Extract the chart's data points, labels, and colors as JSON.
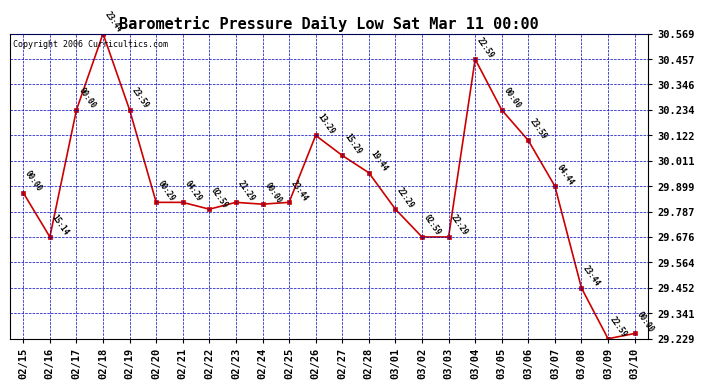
{
  "title": "Barometric Pressure Daily Low Sat Mar 11 00:00",
  "copyright": "Copyright 2006 Curricultics.com",
  "x_labels": [
    "02/15",
    "02/16",
    "02/17",
    "02/18",
    "02/19",
    "02/20",
    "02/21",
    "02/22",
    "02/23",
    "02/24",
    "02/25",
    "02/26",
    "02/27",
    "02/28",
    "03/01",
    "03/02",
    "03/03",
    "03/04",
    "03/05",
    "03/06",
    "03/07",
    "03/08",
    "03/09",
    "03/10"
  ],
  "y_values": [
    29.87,
    29.676,
    30.234,
    30.569,
    30.234,
    29.828,
    29.828,
    29.798,
    29.828,
    29.82,
    29.828,
    30.122,
    30.034,
    29.958,
    29.798,
    29.676,
    29.676,
    30.457,
    30.234,
    30.1,
    29.899,
    29.452,
    29.229,
    29.252
  ],
  "point_labels": [
    "00:00",
    "15:14",
    "00:00",
    "23:44",
    "23:59",
    "00:29",
    "04:29",
    "02:59",
    "21:29",
    "00:00",
    "23:44",
    "13:29",
    "15:29",
    "19:44",
    "22:29",
    "02:59",
    "22:29",
    "22:59",
    "00:00",
    "23:59",
    "04:44",
    "23:44",
    "22:59",
    "00:00"
  ],
  "y_ticks": [
    29.229,
    29.341,
    29.452,
    29.564,
    29.676,
    29.787,
    29.899,
    30.011,
    30.122,
    30.234,
    30.346,
    30.457,
    30.569
  ],
  "y_min": 29.229,
  "y_max": 30.569,
  "line_color": "#cc0000",
  "marker_color": "#cc0000",
  "background_color": "#ffffff",
  "grid_color": "#0000bb",
  "text_color": "#000000",
  "title_fontsize": 11,
  "tick_fontsize": 7.5
}
